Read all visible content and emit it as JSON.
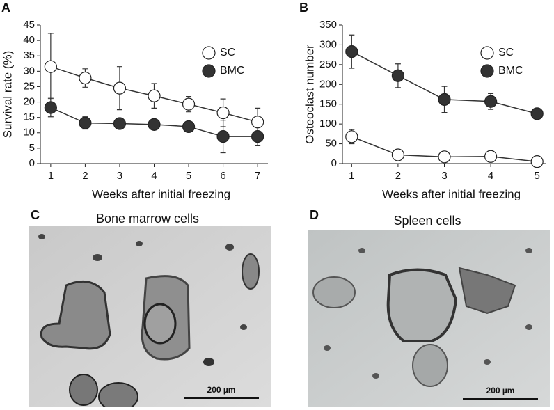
{
  "chart_data": [
    {
      "type": "line",
      "label": "A",
      "x": [
        1,
        2,
        3,
        4,
        5,
        6,
        7
      ],
      "xlim": [
        0.7,
        7.3
      ],
      "xticks": [
        1,
        2,
        3,
        4,
        5,
        6,
        7
      ],
      "ylim": [
        0,
        45
      ],
      "yticks": [
        0,
        5,
        10,
        15,
        20,
        25,
        30,
        35,
        40,
        45
      ],
      "x_label": "Weeks after initial freezing",
      "y_label": "Survival rate (%)",
      "legend": "upper right",
      "series": [
        {
          "name": "SC",
          "color": "#ffffff",
          "values": [
            31.5,
            27.8,
            24.5,
            22,
            19.3,
            16.5,
            13.5
          ],
          "errors": [
            10.8,
            3,
            7,
            4,
            2.5,
            4.5,
            4.5
          ]
        },
        {
          "name": "BMC",
          "color": "#333333",
          "values": [
            18.2,
            13.2,
            13,
            12.7,
            12,
            8.8,
            8.8
          ],
          "errors": [
            3,
            2,
            0.5,
            0.5,
            0.5,
            5.3,
            3
          ]
        }
      ]
    },
    {
      "type": "line",
      "label": "B",
      "x": [
        1,
        2,
        3,
        4,
        5
      ],
      "xlim": [
        0.8,
        5.2
      ],
      "xticks": [
        1,
        2,
        3,
        4,
        5
      ],
      "ylim": [
        0,
        350
      ],
      "yticks": [
        0,
        50,
        100,
        150,
        200,
        250,
        300,
        350
      ],
      "x_label": "Weeks after initial freezing",
      "y_label": "Osteoclast number",
      "legend": "upper right",
      "series": [
        {
          "name": "SC",
          "color": "#ffffff",
          "values": [
            68,
            22,
            17,
            18,
            5
          ],
          "errors": [
            18,
            3,
            3,
            3,
            3
          ]
        },
        {
          "name": "BMC",
          "color": "#333333",
          "values": [
            283,
            222,
            162,
            157,
            126
          ],
          "errors": [
            42,
            30,
            33,
            20,
            8
          ]
        }
      ]
    }
  ],
  "images": [
    {
      "label": "C",
      "caption": "Bone marrow cells",
      "scale_bar": "200 µm"
    },
    {
      "label": "D",
      "caption": "Spleen cells",
      "scale_bar": "200 µm"
    }
  ]
}
